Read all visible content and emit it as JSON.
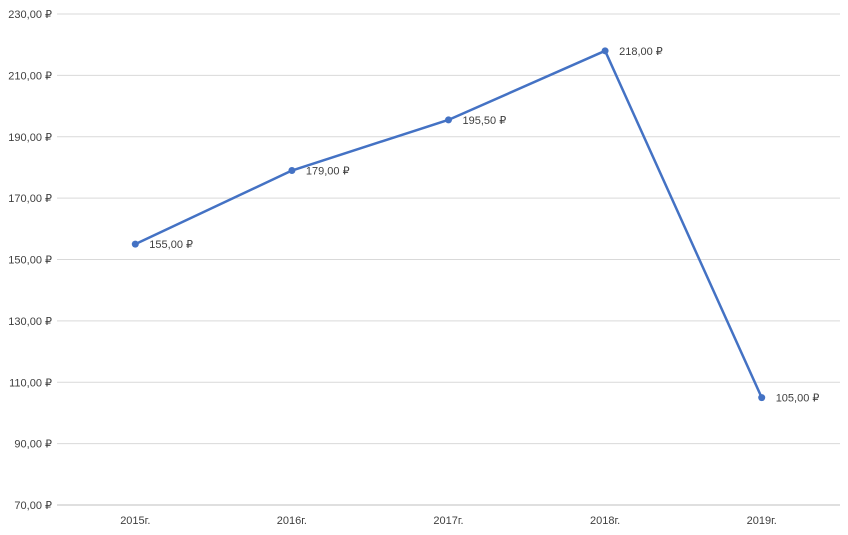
{
  "chart_data": {
    "type": "line",
    "title": "",
    "xlabel": "",
    "ylabel": "",
    "categories": [
      "2015г.",
      "2016г.",
      "2017г.",
      "2018г.",
      "2019г."
    ],
    "series": [
      {
        "name": "price",
        "values": [
          155,
          179,
          195.5,
          218,
          105
        ],
        "point_labels": [
          "155,00 ₽",
          "179,00 ₽",
          "195,50 ₽",
          "218,00 ₽",
          "105,00 ₽"
        ]
      }
    ],
    "y_ticks": [
      {
        "value": 230,
        "label": "230,00 ₽"
      },
      {
        "value": 210,
        "label": "210,00 ₽"
      },
      {
        "value": 190,
        "label": "190,00 ₽"
      },
      {
        "value": 170,
        "label": "170,00 ₽"
      },
      {
        "value": 150,
        "label": "150,00 ₽"
      },
      {
        "value": 130,
        "label": "130,00 ₽"
      },
      {
        "value": 110,
        "label": "110,00 ₽"
      },
      {
        "value": 90,
        "label": "90,00 ₽"
      },
      {
        "value": 70,
        "label": "70,00 ₽"
      }
    ],
    "ylim": [
      70,
      230
    ],
    "grid": true,
    "legend_position": "none",
    "marker": "circle",
    "colors": {
      "line": "#4472C4",
      "marker": "#4472C4",
      "gridline": "#D9D9D9",
      "axis_line": "#BFBFBF",
      "tick_text": "#404040",
      "data_label_text": "#404040",
      "background": "#FFFFFF"
    }
  }
}
